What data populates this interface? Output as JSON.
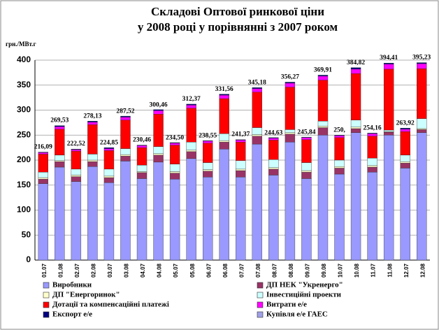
{
  "chart_data": {
    "type": "stacked_bar",
    "title": [
      "Складові Оптової ринкової ціни",
      "у 2008 році у порівнянні з 2007 роком"
    ],
    "y_label": "грн./МВт.г",
    "categories": [
      "01.07",
      "01.08",
      "02.07",
      "02.08",
      "03.07",
      "03.08",
      "04.07",
      "04.08",
      "05.07",
      "05.08",
      "06.07",
      "06.08",
      "07.07",
      "07.08",
      "08.07",
      "08.08",
      "09.07",
      "09.08",
      "10.07",
      "10.08",
      "11.07",
      "11.08",
      "12.07",
      "12.08"
    ],
    "series": [
      {
        "name": "Виробники",
        "color": "#9999ff",
        "values": [
          153,
          186,
          157,
          187,
          155,
          198,
          163,
          196,
          162,
          203,
          166,
          222,
          166,
          232,
          170,
          236,
          163,
          250,
          172,
          255,
          176,
          250,
          184,
          255
        ]
      },
      {
        "name": "ДП НЕК \"Укренерго\"",
        "color": "#993366",
        "values": [
          9,
          11,
          10,
          10,
          10,
          10,
          12,
          14,
          12,
          14,
          12,
          14,
          13,
          16,
          12,
          16,
          13,
          15,
          12,
          8,
          10,
          6,
          10,
          6
        ]
      },
      {
        "name": "ДП \"Енергоринок\"",
        "color": "#ffffcc",
        "values": [
          3,
          2,
          3,
          3,
          3,
          3,
          2,
          3,
          3,
          3,
          3,
          3,
          3,
          3,
          3,
          3,
          3,
          3,
          3,
          3,
          3,
          1,
          3,
          2
        ]
      },
      {
        "name": "Інвестиційні проекти",
        "color": "#ccffff",
        "values": [
          11,
          11,
          12,
          12,
          14,
          12,
          13,
          14,
          15,
          16,
          14,
          14,
          17,
          14,
          16,
          6,
          16,
          10,
          13,
          14,
          15,
          3,
          13,
          20
        ]
      },
      {
        "name": "Дотації та компенсаційні платежі",
        "color": "#ff0000",
        "values": [
          36,
          52,
          36,
          59,
          37,
          57,
          35,
          65,
          38,
          68,
          39,
          70,
          37,
          71,
          39,
          85,
          46,
          82,
          45,
          93,
          44,
          122,
          47,
          100
        ]
      },
      {
        "name": "Витрати е/е",
        "color": "#ff00ff",
        "values": [
          3,
          5,
          3,
          5,
          4,
          6,
          4,
          7,
          4,
          6,
          4,
          7,
          4,
          7,
          4,
          8,
          4,
          8,
          4,
          9,
          5,
          10,
          5,
          10
        ]
      },
      {
        "name": "Експорт е/е",
        "color": "#000080",
        "values": [
          1,
          2,
          1,
          2,
          2,
          2,
          1,
          2,
          1,
          2,
          1,
          2,
          1,
          2,
          1,
          2,
          1,
          2,
          1,
          3,
          1,
          2,
          2,
          2
        ]
      },
      {
        "name": "Купівля е/е ГАЕС",
        "color": "#a0a0e8",
        "values": [
          0,
          0,
          0,
          0,
          0,
          0,
          0,
          0,
          0,
          0,
          0,
          0,
          0,
          0,
          0,
          0,
          0,
          0,
          0,
          0,
          0,
          0,
          0,
          0
        ]
      }
    ],
    "totals": [
      216.09,
      269.53,
      222.52,
      278.13,
      224.85,
      287.52,
      230.46,
      300.46,
      234.5,
      312.37,
      238.55,
      331.56,
      241.37,
      345.18,
      244.63,
      356.27,
      245.84,
      369.91,
      250,
      384.82,
      254.16,
      394.41,
      263.92,
      395.23
    ],
    "total_labels": [
      "216,09",
      "269,53",
      "222,52",
      "278,13",
      "224,85",
      "287,52",
      "230,46",
      "300,46",
      "234,50",
      "312,37",
      "238,55",
      "331,56",
      "241,37",
      "345,18",
      "244,63",
      "356,27",
      "245,84",
      "369,91",
      "250,",
      "384,82",
      "254,16",
      "394,41",
      "263,92",
      "395,23"
    ],
    "ylim": [
      0,
      400
    ],
    "yticks": [
      0,
      50,
      100,
      150,
      200,
      250,
      300,
      350,
      400
    ],
    "grid": true
  }
}
